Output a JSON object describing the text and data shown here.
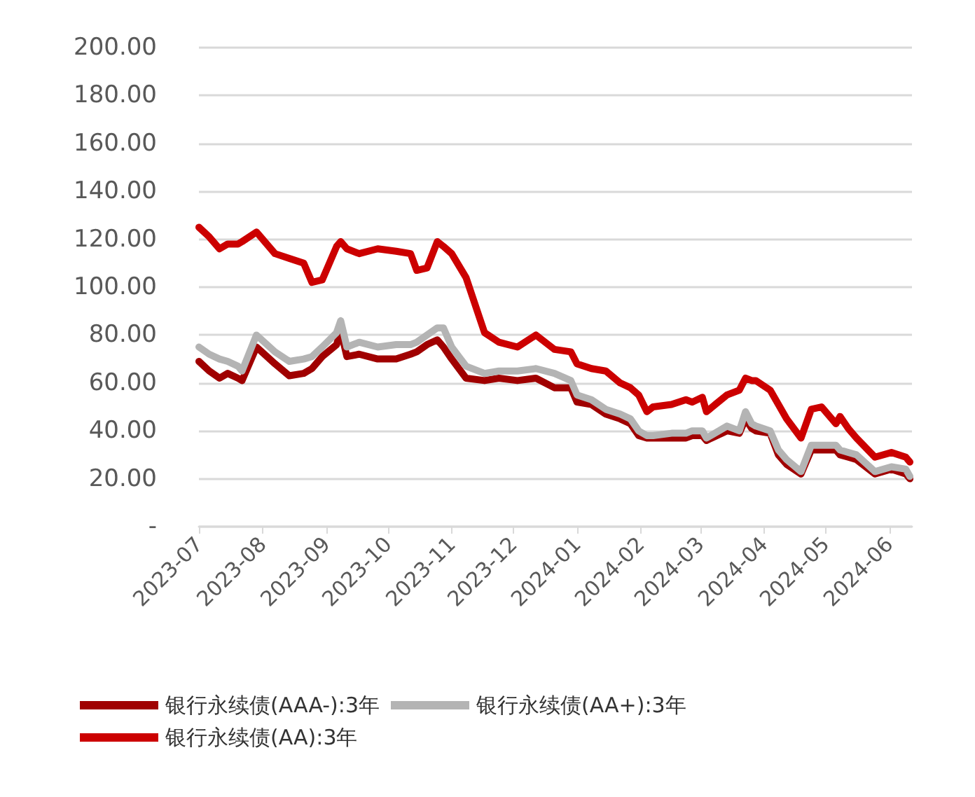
{
  "chart_data": {
    "type": "line",
    "x": [
      "2023-07-01",
      "2023-07-06",
      "2023-07-11",
      "2023-07-15",
      "2023-07-20",
      "2023-07-22",
      "2023-07-29",
      "2023-08-07",
      "2023-08-14",
      "2023-08-21",
      "2023-08-25",
      "2023-08-30",
      "2023-09-06",
      "2023-09-08",
      "2023-09-11",
      "2023-09-17",
      "2023-09-26",
      "2023-10-05",
      "2023-10-12",
      "2023-10-15",
      "2023-10-20",
      "2023-10-25",
      "2023-10-28",
      "2023-11-01",
      "2023-11-08",
      "2023-11-17",
      "2023-11-24",
      "2023-12-03",
      "2023-12-12",
      "2023-12-21",
      "2023-12-29",
      "2024-01-01",
      "2024-01-08",
      "2024-01-15",
      "2024-01-22",
      "2024-01-27",
      "2024-01-31",
      "2024-02-04",
      "2024-02-07",
      "2024-02-16",
      "2024-02-23",
      "2024-02-26",
      "2024-03-02",
      "2024-03-04",
      "2024-03-14",
      "2024-03-20",
      "2024-03-23",
      "2024-03-26",
      "2024-03-28",
      "2024-04-04",
      "2024-04-08",
      "2024-04-12",
      "2024-04-19",
      "2024-04-24",
      "2024-04-29",
      "2024-05-06",
      "2024-05-08",
      "2024-05-12",
      "2024-05-16",
      "2024-05-25",
      "2024-06-02",
      "2024-06-09",
      "2024-06-11"
    ],
    "series": [
      {
        "name": "银行永续债(AAA-):3年",
        "color": "#a00000",
        "values": [
          69,
          65,
          62,
          64,
          62,
          61,
          75,
          68,
          63,
          64,
          66,
          71,
          76,
          82,
          71,
          72,
          70,
          70,
          72,
          73,
          76,
          78,
          75,
          70,
          62,
          61,
          62,
          61,
          62,
          58,
          58,
          52,
          51,
          47,
          45,
          43,
          38,
          37,
          37,
          37,
          37,
          38,
          38,
          36,
          40,
          39,
          45,
          41,
          40,
          39,
          30,
          26,
          22,
          32,
          32,
          32,
          30,
          29,
          28,
          22,
          24,
          22,
          20
        ]
      },
      {
        "name": "银行永续债(AA+):3年",
        "color": "#b4b4b4",
        "values": [
          75,
          72,
          70,
          69,
          67,
          65,
          80,
          73,
          69,
          70,
          71,
          75,
          81,
          86,
          75,
          77,
          75,
          76,
          76,
          77,
          80,
          83,
          83,
          75,
          67,
          64,
          65,
          65,
          66,
          64,
          61,
          55,
          53,
          49,
          47,
          45,
          40,
          38,
          38,
          39,
          39,
          40,
          40,
          37,
          42,
          40,
          48,
          43,
          42,
          40,
          32,
          28,
          23,
          34,
          34,
          34,
          32,
          31,
          30,
          23,
          25,
          24,
          21
        ]
      },
      {
        "name": "银行永续债(AA):3年",
        "color": "#cc0000",
        "values": [
          125,
          121,
          116,
          118,
          118,
          119,
          123,
          114,
          112,
          110,
          102,
          103,
          117,
          119,
          116,
          114,
          116,
          115,
          114,
          107,
          108,
          119,
          117,
          114,
          104,
          81,
          77,
          75,
          80,
          74,
          73,
          68,
          66,
          65,
          60,
          58,
          55,
          48,
          50,
          51,
          53,
          52,
          54,
          48,
          55,
          57,
          62,
          61,
          61,
          57,
          51,
          45,
          37,
          49,
          50,
          43,
          46,
          41,
          37,
          29,
          31,
          29,
          27
        ]
      }
    ],
    "xlim": [
      "2023-07-01",
      "2024-06-12"
    ],
    "xticks": [
      "2023-07",
      "2023-08",
      "2023-09",
      "2023-10",
      "2023-11",
      "2023-12",
      "2024-01",
      "2024-02",
      "2024-03",
      "2024-04",
      "2024-05",
      "2024-06"
    ],
    "ylim": [
      0,
      200
    ],
    "yticks": [
      {
        "value": 0,
        "label": "-"
      },
      {
        "value": 20,
        "label": "20.00"
      },
      {
        "value": 40,
        "label": "40.00"
      },
      {
        "value": 60,
        "label": "60.00"
      },
      {
        "value": 80,
        "label": "80.00"
      },
      {
        "value": 100,
        "label": "100.00"
      },
      {
        "value": 120,
        "label": "120.00"
      },
      {
        "value": 140,
        "label": "140.00"
      },
      {
        "value": 160,
        "label": "160.00"
      },
      {
        "value": 180,
        "label": "180.00"
      },
      {
        "value": 200,
        "label": "200.00"
      }
    ],
    "grid": "y",
    "legend": "bottom",
    "marker": "none",
    "line_style": "solid"
  }
}
